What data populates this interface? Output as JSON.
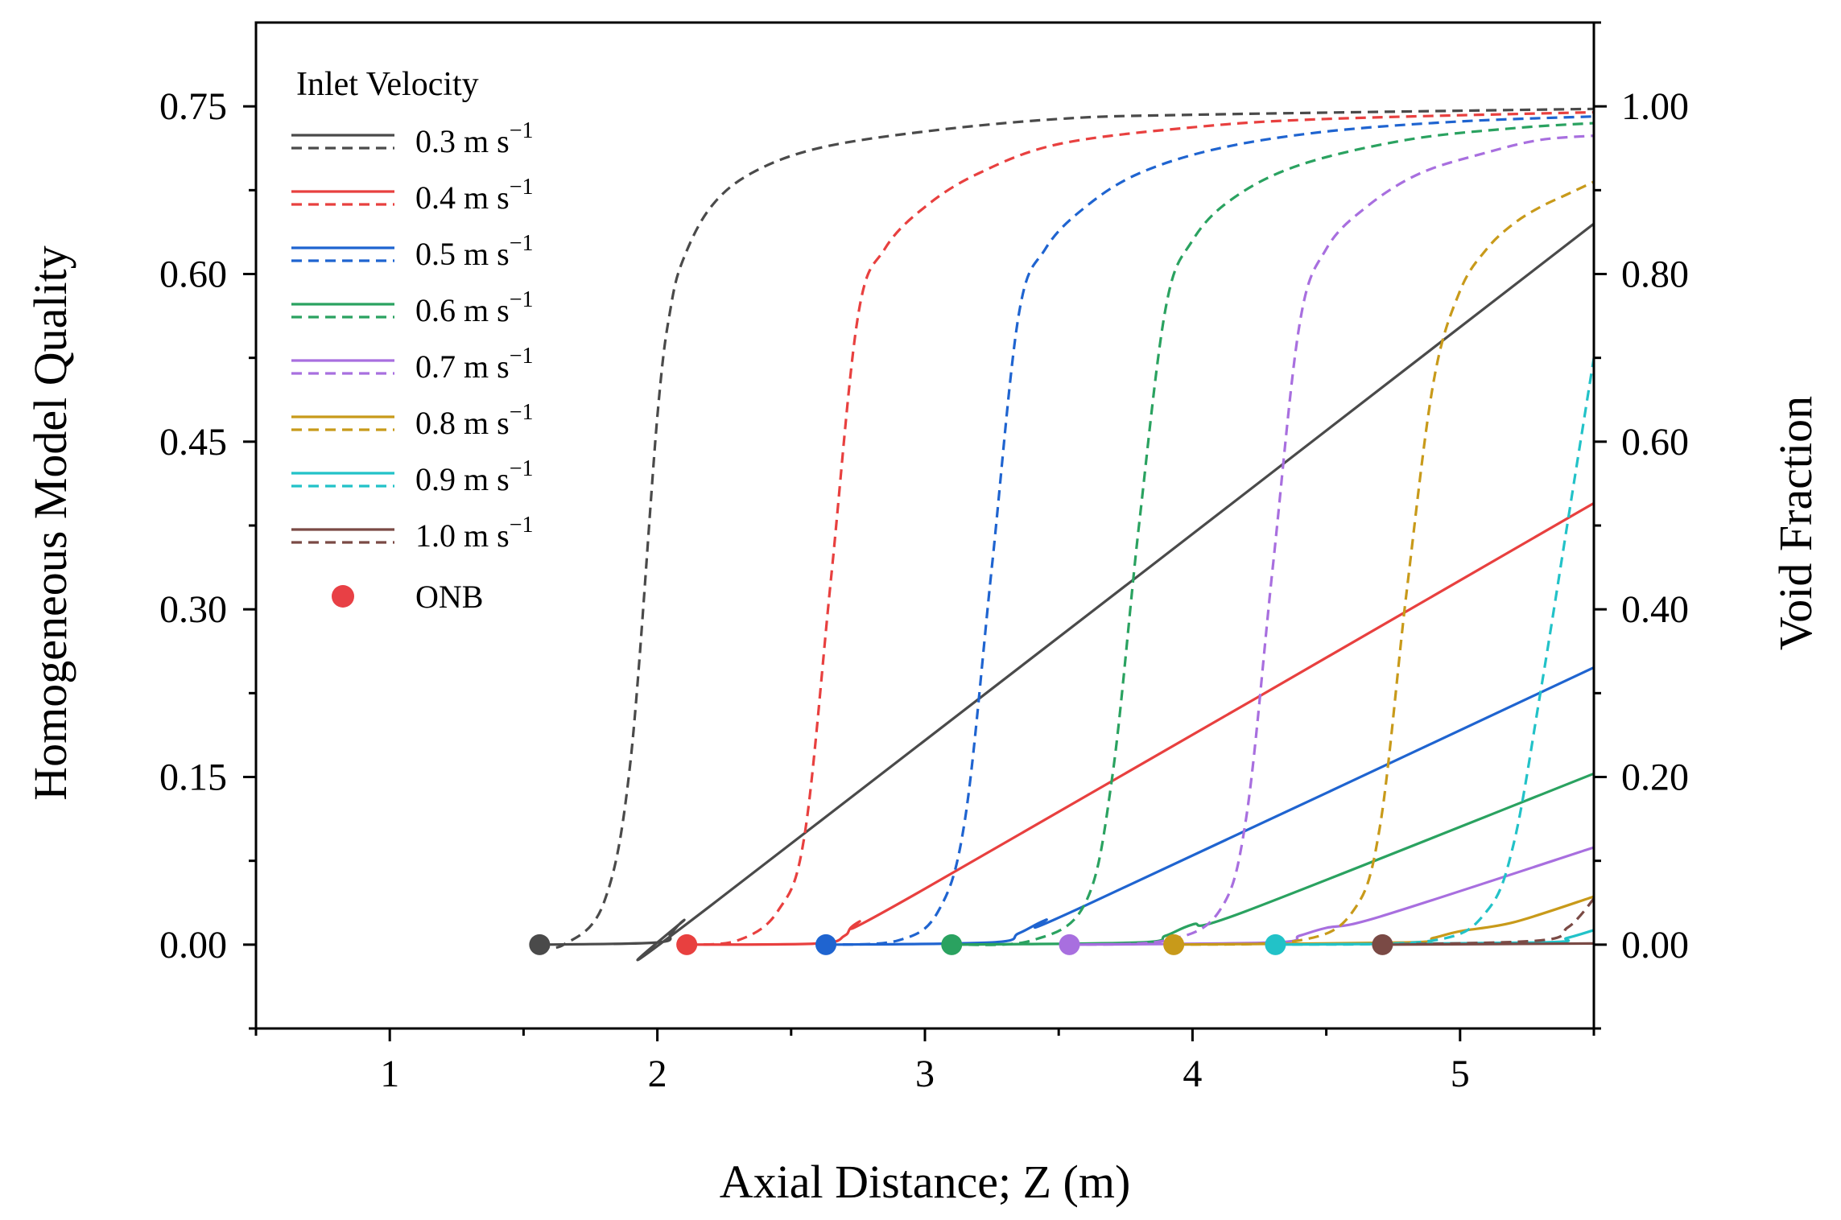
{
  "chart_data": {
    "type": "line",
    "xlabel": "Axial Distance; Z (m)",
    "ylabel_left": "Homogeneous Model Quality",
    "ylabel_right": "Void Fraction",
    "xlim": [
      0.5,
      5.5
    ],
    "ylim_left": [
      -0.075,
      0.825
    ],
    "ylim_right": [
      -0.1,
      1.1
    ],
    "x_ticks": [
      "1",
      "2",
      "3",
      "4",
      "5"
    ],
    "y_left_ticks": [
      "0.00",
      "0.15",
      "0.30",
      "0.45",
      "0.60",
      "0.75"
    ],
    "y_right_ticks": [
      "0.00",
      "0.20",
      "0.40",
      "0.60",
      "0.80",
      "1.00"
    ],
    "legend_title": "Inlet Velocity",
    "legend_unit": "m s",
    "legend_exponent": "−1",
    "onb_label": "ONB",
    "onb_color": "#e84045",
    "line_styles": {
      "quality": "solid",
      "void_fraction": "dashed"
    },
    "series": [
      {
        "name": "0.3",
        "color": "#4a4a4a",
        "onb_z": 1.56,
        "quality": {
          "x": [
            1.56,
            2.0,
            2.05,
            2.1,
            2.2,
            5.5
          ],
          "y": [
            0.0,
            0.002,
            0.01,
            0.022,
            0.035,
            0.645
          ]
        },
        "void": {
          "x": [
            1.56,
            1.65,
            1.8,
            1.9,
            2.0,
            2.05,
            2.1,
            2.2,
            2.35,
            2.6,
            3.0,
            3.5,
            4.0,
            5.5
          ],
          "y": [
            0.0,
            0.0,
            0.05,
            0.22,
            0.63,
            0.76,
            0.82,
            0.88,
            0.92,
            0.95,
            0.97,
            0.985,
            0.99,
            0.997
          ]
        }
      },
      {
        "name": "0.4",
        "color": "#e8403f",
        "onb_z": 2.11,
        "quality": {
          "x": [
            2.11,
            2.6,
            2.7,
            2.75,
            3.0,
            5.5
          ],
          "y": [
            0.0,
            0.001,
            0.008,
            0.02,
            0.05,
            0.395
          ]
        },
        "void": {
          "x": [
            2.11,
            2.3,
            2.45,
            2.55,
            2.65,
            2.75,
            2.85,
            3.0,
            3.2,
            3.5,
            4.0,
            4.5,
            5.5
          ],
          "y": [
            0.0,
            0.005,
            0.04,
            0.13,
            0.44,
            0.75,
            0.83,
            0.88,
            0.92,
            0.955,
            0.975,
            0.985,
            0.993
          ]
        }
      },
      {
        "name": "0.5",
        "color": "#1f64d0",
        "onb_z": 2.63,
        "quality": {
          "x": [
            2.63,
            3.25,
            3.35,
            3.45,
            3.6,
            5.5
          ],
          "y": [
            0.0,
            0.002,
            0.01,
            0.022,
            0.035,
            0.248
          ]
        },
        "void": {
          "x": [
            2.63,
            2.9,
            3.05,
            3.15,
            3.25,
            3.35,
            3.45,
            3.6,
            3.8,
            4.1,
            4.5,
            5.0,
            5.5
          ],
          "y": [
            0.0,
            0.005,
            0.04,
            0.15,
            0.45,
            0.75,
            0.83,
            0.88,
            0.92,
            0.95,
            0.97,
            0.982,
            0.988
          ]
        }
      },
      {
        "name": "0.6",
        "color": "#2aa260",
        "onb_z": 3.1,
        "quality": {
          "x": [
            3.1,
            3.8,
            3.9,
            4.0,
            4.2,
            5.5
          ],
          "y": [
            0.0,
            0.002,
            0.008,
            0.018,
            0.03,
            0.153
          ]
        },
        "void": {
          "x": [
            3.1,
            3.4,
            3.6,
            3.7,
            3.8,
            3.9,
            4.0,
            4.15,
            4.4,
            4.8,
            5.2,
            5.5
          ],
          "y": [
            0.0,
            0.005,
            0.05,
            0.2,
            0.5,
            0.76,
            0.84,
            0.89,
            0.93,
            0.96,
            0.974,
            0.98
          ]
        }
      },
      {
        "name": "0.7",
        "color": "#a86fdf",
        "onb_z": 3.54,
        "quality": {
          "x": [
            3.54,
            4.3,
            4.4,
            4.5,
            4.7,
            5.5
          ],
          "y": [
            0.0,
            0.002,
            0.008,
            0.015,
            0.025,
            0.087
          ]
        },
        "void": {
          "x": [
            3.54,
            3.9,
            4.1,
            4.2,
            4.3,
            4.4,
            4.5,
            4.65,
            4.85,
            5.1,
            5.3,
            5.5
          ],
          "y": [
            0.0,
            0.005,
            0.04,
            0.15,
            0.45,
            0.74,
            0.83,
            0.88,
            0.92,
            0.945,
            0.96,
            0.965
          ]
        }
      },
      {
        "name": "0.8",
        "color": "#c89a1a",
        "onb_z": 3.93,
        "quality": {
          "x": [
            3.93,
            4.8,
            4.9,
            5.0,
            5.2,
            5.5
          ],
          "y": [
            0.0,
            0.002,
            0.006,
            0.012,
            0.02,
            0.043
          ]
        },
        "void": {
          "x": [
            3.93,
            4.4,
            4.6,
            4.7,
            4.8,
            4.9,
            5.0,
            5.1,
            5.2,
            5.3,
            5.4,
            5.5
          ],
          "y": [
            0.0,
            0.005,
            0.04,
            0.14,
            0.42,
            0.67,
            0.78,
            0.83,
            0.86,
            0.88,
            0.895,
            0.91
          ]
        }
      },
      {
        "name": "0.9",
        "color": "#22c2c8",
        "onb_z": 4.31,
        "quality": {
          "x": [
            4.31,
            5.3,
            5.4,
            5.5
          ],
          "y": [
            0.0,
            0.002,
            0.006,
            0.013
          ]
        },
        "void": {
          "x": [
            4.31,
            4.9,
            5.1,
            5.2,
            5.3,
            5.4,
            5.45,
            5.5
          ],
          "y": [
            0.0,
            0.005,
            0.04,
            0.12,
            0.3,
            0.5,
            0.6,
            0.7
          ]
        }
      },
      {
        "name": "1.0",
        "color": "#7a4a45",
        "onb_z": 4.71,
        "quality": {
          "x": [
            4.71,
            5.5
          ],
          "y": [
            0.0,
            0.001
          ]
        },
        "void": {
          "x": [
            4.71,
            5.3,
            5.4,
            5.45,
            5.5
          ],
          "y": [
            0.0,
            0.005,
            0.02,
            0.035,
            0.055
          ]
        }
      }
    ]
  }
}
